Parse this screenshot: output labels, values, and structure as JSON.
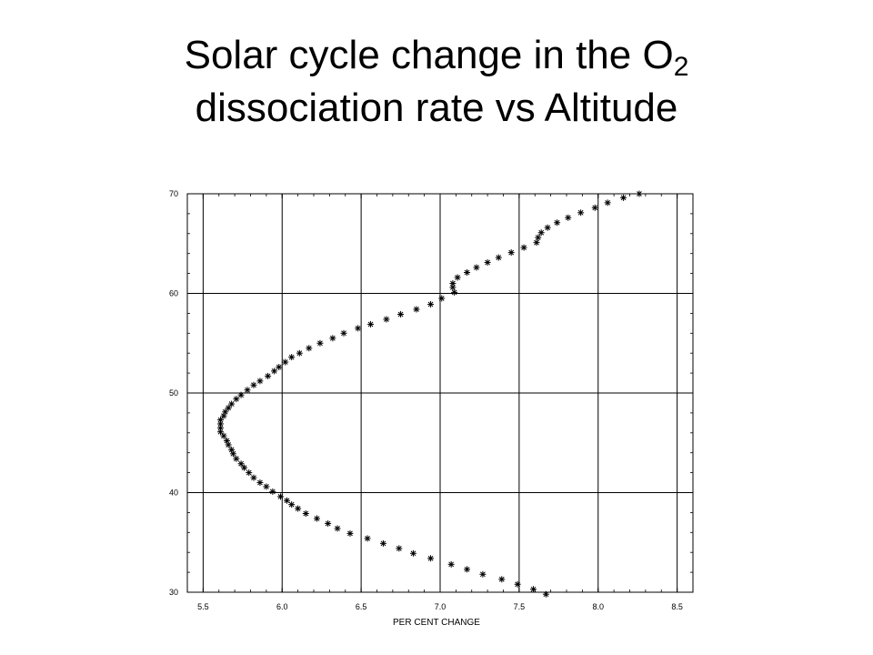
{
  "title": {
    "line1_prefix": "Solar cycle change in the O",
    "line1_subscript": "2",
    "line2": "dissociation rate vs Altitude"
  },
  "chart_data": {
    "type": "scatter",
    "marker": "*",
    "xlabel": "PER CENT CHANGE",
    "ylabel": "",
    "xlim": [
      5.4,
      8.6
    ],
    "ylim": [
      30,
      70
    ],
    "xticks": [
      5.5,
      6.0,
      6.5,
      7.0,
      7.5,
      8.0,
      8.5
    ],
    "xtick_labels": [
      "5.5",
      "6.0",
      "6.5",
      "7.0",
      "7.5",
      "8.0",
      "8.5"
    ],
    "yticks": [
      30,
      40,
      50,
      60,
      70
    ],
    "ytick_labels": [
      "30",
      "40",
      "50",
      "60",
      "70"
    ],
    "grid": true,
    "series": [
      {
        "marker_color": "#000000",
        "points": [
          [
            7.67,
            29.8
          ],
          [
            7.59,
            30.3
          ],
          [
            7.49,
            30.8
          ],
          [
            7.39,
            31.3
          ],
          [
            7.27,
            31.8
          ],
          [
            7.17,
            32.3
          ],
          [
            7.07,
            32.8
          ],
          [
            6.94,
            33.4
          ],
          [
            6.83,
            33.9
          ],
          [
            6.74,
            34.4
          ],
          [
            6.64,
            34.9
          ],
          [
            6.54,
            35.4
          ],
          [
            6.43,
            35.9
          ],
          [
            6.35,
            36.4
          ],
          [
            6.29,
            36.9
          ],
          [
            6.22,
            37.4
          ],
          [
            6.15,
            37.9
          ],
          [
            6.1,
            38.4
          ],
          [
            6.06,
            38.8
          ],
          [
            6.03,
            39.2
          ],
          [
            5.99,
            39.6
          ],
          [
            5.94,
            40.1
          ],
          [
            5.9,
            40.6
          ],
          [
            5.86,
            41.0
          ],
          [
            5.82,
            41.5
          ],
          [
            5.79,
            42.0
          ],
          [
            5.76,
            42.5
          ],
          [
            5.74,
            42.9
          ],
          [
            5.71,
            43.4
          ],
          [
            5.69,
            43.9
          ],
          [
            5.68,
            44.3
          ],
          [
            5.66,
            44.8
          ],
          [
            5.65,
            45.2
          ],
          [
            5.63,
            45.7
          ],
          [
            5.61,
            46.1
          ],
          [
            5.61,
            46.5
          ],
          [
            5.61,
            46.9
          ],
          [
            5.61,
            47.3
          ],
          [
            5.63,
            47.7
          ],
          [
            5.64,
            48.1
          ],
          [
            5.66,
            48.5
          ],
          [
            5.68,
            48.9
          ],
          [
            5.71,
            49.4
          ],
          [
            5.74,
            49.8
          ],
          [
            5.78,
            50.3
          ],
          [
            5.82,
            50.8
          ],
          [
            5.86,
            51.2
          ],
          [
            5.91,
            51.7
          ],
          [
            5.95,
            52.2
          ],
          [
            5.98,
            52.6
          ],
          [
            6.02,
            53.1
          ],
          [
            6.06,
            53.6
          ],
          [
            6.11,
            54.0
          ],
          [
            6.17,
            54.5
          ],
          [
            6.24,
            55.0
          ],
          [
            6.32,
            55.5
          ],
          [
            6.39,
            56.0
          ],
          [
            6.48,
            56.5
          ],
          [
            6.56,
            56.9
          ],
          [
            6.66,
            57.4
          ],
          [
            6.75,
            57.9
          ],
          [
            6.85,
            58.4
          ],
          [
            6.94,
            58.9
          ],
          [
            7.01,
            59.5
          ],
          [
            7.09,
            60.1
          ],
          [
            7.08,
            60.6
          ],
          [
            7.08,
            61.0
          ],
          [
            7.11,
            61.6
          ],
          [
            7.17,
            62.1
          ],
          [
            7.23,
            62.6
          ],
          [
            7.3,
            63.1
          ],
          [
            7.37,
            63.6
          ],
          [
            7.45,
            64.1
          ],
          [
            7.53,
            64.6
          ],
          [
            7.61,
            65.1
          ],
          [
            7.62,
            65.6
          ],
          [
            7.64,
            66.1
          ],
          [
            7.68,
            66.6
          ],
          [
            7.74,
            67.1
          ],
          [
            7.81,
            67.6
          ],
          [
            7.89,
            68.1
          ],
          [
            7.98,
            68.6
          ],
          [
            8.06,
            69.1
          ],
          [
            8.16,
            69.6
          ],
          [
            8.26,
            70.0
          ]
        ]
      }
    ]
  }
}
